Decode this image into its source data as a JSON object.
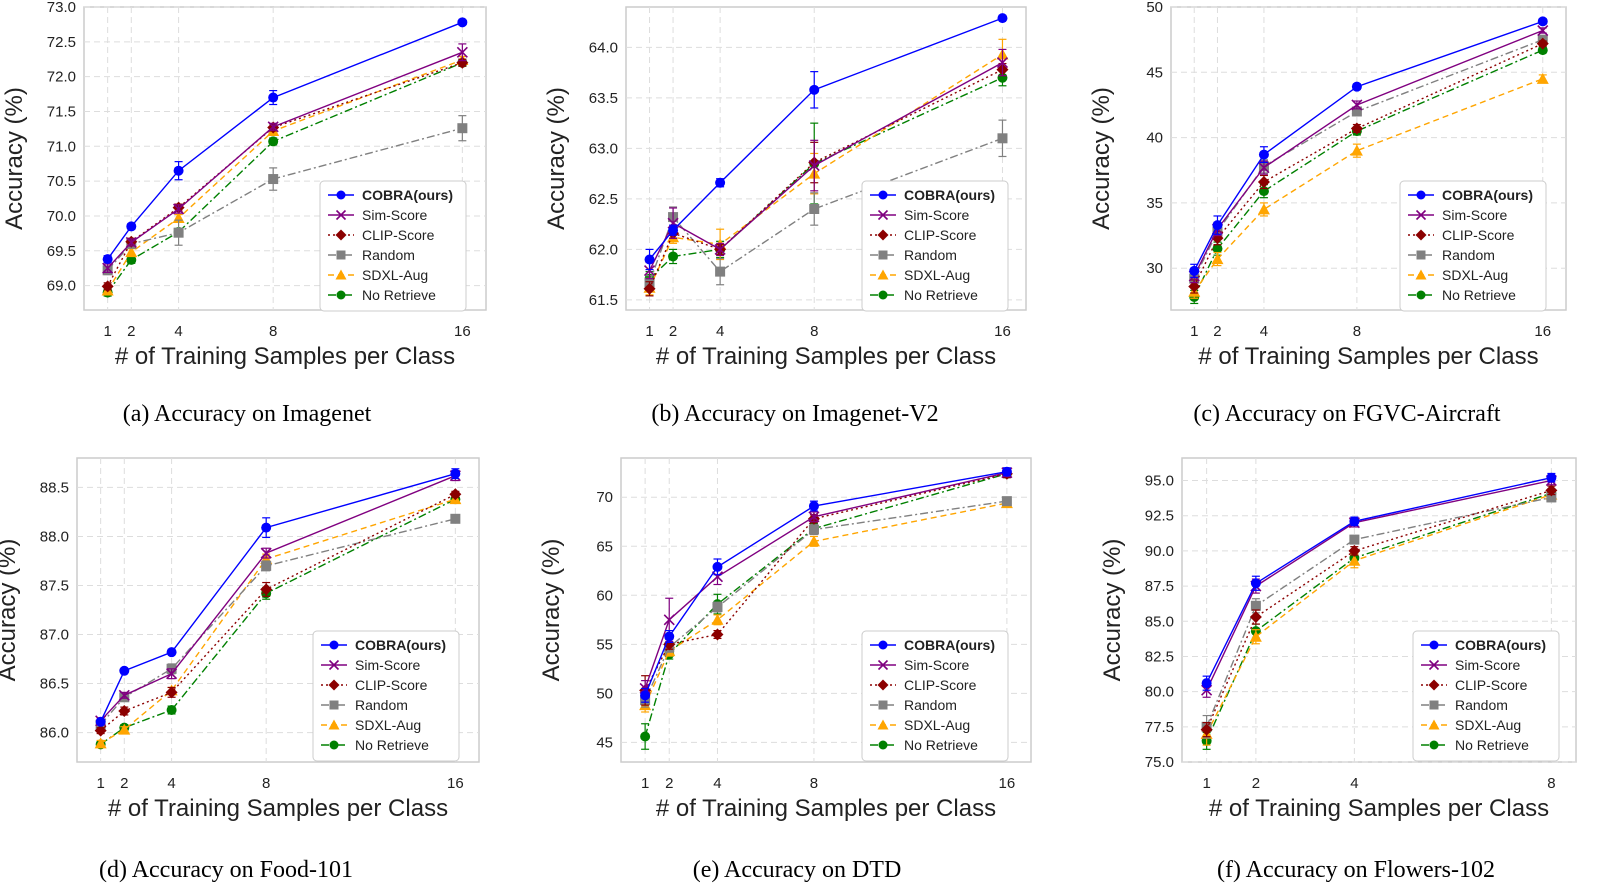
{
  "chart_data": [
    {
      "type": "line",
      "caption": "(a) Accuracy on Imagenet",
      "xlabel": "# of Training Samples per Class",
      "ylabel": "Accuracy (%)",
      "x": [
        1,
        2,
        4,
        8,
        16
      ],
      "xlim": [
        0,
        17
      ],
      "ylim": [
        68.65,
        73.0
      ],
      "yticks": [
        "69.0",
        "69.5",
        "70.0",
        "70.5",
        "71.0",
        "71.5",
        "72.0",
        "72.5",
        "73.0"
      ],
      "legend": "center-right",
      "series": [
        {
          "name": "COBRA(ours)",
          "values": [
            69.38,
            69.85,
            70.65,
            71.7,
            72.78
          ],
          "err": [
            0.05,
            0.04,
            0.13,
            0.1,
            0.03
          ]
        },
        {
          "name": "Sim-Score",
          "values": [
            69.25,
            69.62,
            70.1,
            71.28,
            72.35
          ],
          "err": [
            0.06,
            0.05,
            0.06,
            0.05,
            0.12
          ]
        },
        {
          "name": "CLIP-Score",
          "values": [
            68.99,
            69.63,
            70.12,
            71.27,
            72.2
          ],
          "err": [
            0.05,
            0.05,
            0.05,
            0.05,
            0.05
          ]
        },
        {
          "name": "Random",
          "values": [
            69.22,
            69.6,
            69.76,
            70.53,
            71.26
          ],
          "err": [
            0.06,
            0.06,
            0.18,
            0.16,
            0.18
          ]
        },
        {
          "name": "SDXL-Aug",
          "values": [
            68.93,
            69.48,
            69.97,
            71.22,
            72.24
          ],
          "err": [
            0.05,
            0.05,
            0.05,
            0.05,
            0.05
          ]
        },
        {
          "name": "No Retrieve",
          "values": [
            68.9,
            69.37,
            69.77,
            71.07,
            72.2
          ],
          "err": [
            0.05,
            0.05,
            0.05,
            0.05,
            0.05
          ]
        }
      ]
    },
    {
      "type": "line",
      "caption": "(b) Accuracy on Imagenet-V2",
      "xlabel": "# of Training Samples per Class",
      "ylabel": "Accuracy (%)",
      "x": [
        1,
        2,
        4,
        8,
        16
      ],
      "xlim": [
        0,
        17
      ],
      "ylim": [
        61.4,
        64.4
      ],
      "yticks": [
        "61.5",
        "62.0",
        "62.5",
        "63.0",
        "63.5",
        "64.0"
      ],
      "legend": "center-right",
      "series": [
        {
          "name": "COBRA(ours)",
          "values": [
            61.9,
            62.19,
            62.66,
            63.58,
            64.29
          ],
          "err": [
            0.1,
            0.05,
            0.04,
            0.18,
            0.02
          ]
        },
        {
          "name": "Sim-Score",
          "values": [
            61.79,
            62.26,
            62.0,
            62.83,
            63.85
          ],
          "err": [
            0.08,
            0.15,
            0.06,
            0.25,
            0.13
          ]
        },
        {
          "name": "CLIP-Score",
          "values": [
            61.61,
            62.16,
            62.0,
            62.86,
            63.78
          ],
          "err": [
            0.07,
            0.05,
            0.05,
            0.2,
            0.06
          ]
        },
        {
          "name": "Random",
          "values": [
            61.67,
            62.32,
            61.78,
            62.4,
            63.1
          ],
          "err": [
            0.07,
            0.1,
            0.13,
            0.16,
            0.18
          ]
        },
        {
          "name": "SDXL-Aug",
          "values": [
            61.62,
            62.12,
            62.05,
            62.75,
            63.93
          ],
          "err": [
            0.07,
            0.06,
            0.15,
            0.2,
            0.15
          ]
        },
        {
          "name": "No Retrieve",
          "values": [
            61.71,
            61.93,
            62.0,
            62.85,
            63.7
          ],
          "err": [
            0.07,
            0.07,
            0.08,
            0.4,
            0.08
          ]
        }
      ]
    },
    {
      "type": "line",
      "caption": "(c) Accuracy on FGVC-Aircraft",
      "xlabel": "# of Training Samples per Class",
      "ylabel": "Accuracy (%)",
      "x": [
        1,
        2,
        4,
        8,
        16
      ],
      "xlim": [
        0,
        17
      ],
      "ylim": [
        26.8,
        50.0
      ],
      "yticks": [
        "30",
        "35",
        "40",
        "45",
        "50"
      ],
      "legend": "center-right",
      "series": [
        {
          "name": "COBRA(ours)",
          "values": [
            29.8,
            33.3,
            38.7,
            43.9,
            48.9
          ],
          "err": [
            0.5,
            0.7,
            0.6,
            0.2,
            0.2
          ]
        },
        {
          "name": "Sim-Score",
          "values": [
            29.4,
            33.0,
            37.7,
            42.5,
            48.2
          ],
          "err": [
            0.5,
            0.5,
            0.5,
            0.3,
            0.2
          ]
        },
        {
          "name": "CLIP-Score",
          "values": [
            28.6,
            32.3,
            36.6,
            40.7,
            47.2
          ],
          "err": [
            0.5,
            0.5,
            0.5,
            0.3,
            0.2
          ]
        },
        {
          "name": "Random",
          "values": [
            29.2,
            32.8,
            37.8,
            42.0,
            47.5
          ],
          "err": [
            0.5,
            0.5,
            0.5,
            0.3,
            0.2
          ]
        },
        {
          "name": "SDXL-Aug",
          "values": [
            28.2,
            30.7,
            34.5,
            39.0,
            44.5
          ],
          "err": [
            0.5,
            0.5,
            0.5,
            0.5,
            0.3
          ]
        },
        {
          "name": "No Retrieve",
          "values": [
            27.8,
            31.5,
            35.9,
            40.5,
            46.7
          ],
          "err": [
            0.5,
            0.5,
            0.5,
            0.3,
            0.2
          ]
        }
      ]
    },
    {
      "type": "line",
      "caption": "(d) Accuracy on Food-101",
      "xlabel": "# of Training Samples per Class",
      "ylabel": "Accuracy (%)",
      "x": [
        1,
        2,
        4,
        8,
        16
      ],
      "xlim": [
        0,
        17
      ],
      "ylim": [
        85.7,
        88.8
      ],
      "yticks": [
        "86.0",
        "86.5",
        "87.0",
        "87.5",
        "88.0",
        "88.5"
      ],
      "legend": "center-right",
      "series": [
        {
          "name": "COBRA(ours)",
          "values": [
            86.11,
            86.63,
            86.82,
            88.09,
            88.64
          ],
          "err": [
            0.02,
            0.02,
            0.02,
            0.1,
            0.05
          ]
        },
        {
          "name": "Sim-Score",
          "values": [
            86.12,
            86.38,
            86.6,
            87.83,
            88.62
          ],
          "err": [
            0.03,
            0.03,
            0.05,
            0.05,
            0.05
          ]
        },
        {
          "name": "CLIP-Score",
          "values": [
            86.02,
            86.22,
            86.41,
            87.46,
            88.43
          ],
          "err": [
            0.03,
            0.04,
            0.05,
            0.07,
            0.03
          ]
        },
        {
          "name": "Random",
          "values": [
            86.08,
            86.36,
            86.65,
            87.7,
            88.18
          ],
          "err": [
            0.03,
            0.03,
            0.05,
            0.05,
            0.03
          ]
        },
        {
          "name": "SDXL-Aug",
          "values": [
            85.89,
            86.03,
            86.43,
            87.77,
            88.38
          ],
          "err": [
            0.03,
            0.03,
            0.03,
            0.05,
            0.03
          ]
        },
        {
          "name": "No Retrieve",
          "values": [
            85.88,
            86.05,
            86.23,
            87.42,
            88.38
          ],
          "err": [
            0.03,
            0.03,
            0.04,
            0.06,
            0.03
          ]
        }
      ]
    },
    {
      "type": "line",
      "caption": "(e) Accuracy on DTD",
      "xlabel": "# of Training Samples per Class",
      "ylabel": "Accuracy (%)",
      "x": [
        1,
        2,
        4,
        8,
        16
      ],
      "xlim": [
        0,
        17
      ],
      "ylim": [
        43.0,
        74.0
      ],
      "yticks": [
        "45",
        "50",
        "55",
        "60",
        "65",
        "70"
      ],
      "legend": "center-right",
      "series": [
        {
          "name": "COBRA(ours)",
          "values": [
            49.8,
            55.8,
            62.9,
            69.1,
            72.6
          ],
          "err": [
            0.7,
            0.6,
            0.8,
            0.5,
            0.4
          ]
        },
        {
          "name": "Sim-Score",
          "values": [
            50.5,
            57.5,
            61.9,
            68.0,
            72.5
          ],
          "err": [
            0.8,
            2.2,
            0.8,
            0.5,
            0.4
          ]
        },
        {
          "name": "CLIP-Score",
          "values": [
            50.3,
            55.0,
            56.0,
            67.8,
            72.4
          ],
          "err": [
            1.5,
            0.5,
            0.4,
            0.4,
            0.4
          ]
        },
        {
          "name": "Random",
          "values": [
            49.3,
            54.7,
            58.8,
            66.7,
            69.6
          ],
          "err": [
            0.7,
            0.5,
            0.5,
            0.5,
            0.4
          ]
        },
        {
          "name": "SDXL-Aug",
          "values": [
            48.8,
            54.3,
            57.5,
            65.5,
            69.4
          ],
          "err": [
            0.7,
            0.5,
            0.5,
            0.5,
            0.4
          ]
        },
        {
          "name": "No Retrieve",
          "values": [
            45.6,
            54.0,
            59.1,
            66.8,
            72.4
          ],
          "err": [
            1.3,
            0.5,
            1.0,
            0.5,
            0.4
          ]
        }
      ]
    },
    {
      "type": "line",
      "caption": "(f) Accuracy on Flowers-102",
      "xlabel": "# of Training Samples per Class",
      "ylabel": "Accuracy (%)",
      "x": [
        1,
        2,
        4,
        8
      ],
      "xlim": [
        0.5,
        8.5
      ],
      "ylim": [
        75.0,
        96.6
      ],
      "yticks": [
        "75.0",
        "77.5",
        "80.0",
        "82.5",
        "85.0",
        "87.5",
        "90.0",
        "92.5",
        "95.0"
      ],
      "legend": "center-right",
      "series": [
        {
          "name": "COBRA(ours)",
          "values": [
            80.6,
            87.7,
            92.1,
            95.2
          ],
          "err": [
            0.5,
            0.5,
            0.3,
            0.3
          ]
        },
        {
          "name": "Sim-Score",
          "values": [
            80.1,
            87.5,
            92.0,
            95.0
          ],
          "err": [
            0.5,
            0.5,
            0.3,
            0.3
          ]
        },
        {
          "name": "CLIP-Score",
          "values": [
            77.3,
            85.3,
            90.0,
            94.3
          ],
          "err": [
            0.5,
            0.5,
            0.3,
            0.3
          ]
        },
        {
          "name": "Random",
          "values": [
            77.5,
            86.1,
            90.8,
            93.8
          ],
          "err": [
            0.8,
            0.5,
            0.3,
            0.3
          ]
        },
        {
          "name": "SDXL-Aug",
          "values": [
            77.0,
            83.9,
            89.3,
            94.0
          ],
          "err": [
            0.8,
            0.5,
            0.5,
            0.3
          ]
        },
        {
          "name": "No Retrieve",
          "values": [
            76.5,
            84.3,
            89.5,
            94.1
          ],
          "err": [
            0.6,
            0.5,
            0.4,
            0.3
          ]
        }
      ]
    }
  ],
  "series_style": [
    {
      "color": "#0000ff",
      "marker": "circle",
      "dash": ""
    },
    {
      "color": "#800080",
      "marker": "x",
      "dash": ""
    },
    {
      "color": "#8b0000",
      "marker": "diamond",
      "dash": "2 3"
    },
    {
      "color": "#808080",
      "marker": "square",
      "dash": "8 3 2 3"
    },
    {
      "color": "#ffa500",
      "marker": "triangle",
      "dash": "6 4"
    },
    {
      "color": "#008000",
      "marker": "circle",
      "dash": "8 3 2 3"
    }
  ]
}
